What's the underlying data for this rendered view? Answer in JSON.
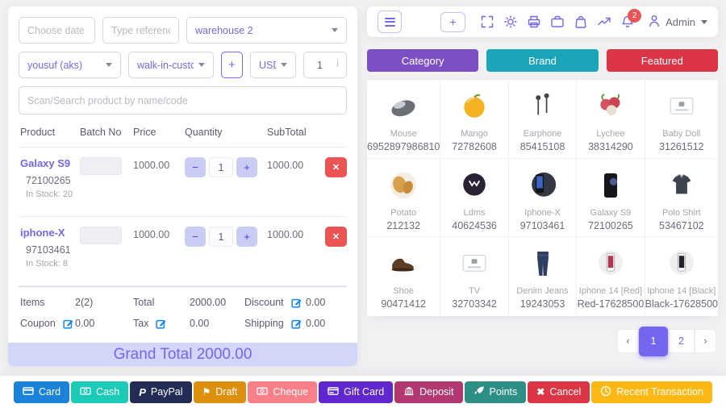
{
  "colors": {
    "accent_purple": "#7367f0",
    "danger_red": "#ea5455",
    "grand_total_bg": "#d2d6f8",
    "edit_icon_blue": "#0d86f8"
  },
  "glyphs": {
    "minus": "−",
    "plus": "+",
    "close_x": "✕",
    "cancel_x": "✖",
    "paypal_p": "P",
    "flag": "⚑"
  },
  "left_panel": {
    "date_placeholder": "Choose date",
    "reference_placeholder": "Type reference nu",
    "warehouse": "warehouse 2",
    "biller": "yousuf (aks)",
    "customer": "walk-in-customer",
    "add_customer_label": "+",
    "currency": "USD",
    "qty_value": "1",
    "qty_suffix": "i",
    "search_placeholder": "Scan/Search product by name/code",
    "table": {
      "headers": [
        "Product",
        "Batch No",
        "Price",
        "Quantity",
        "SubTotal"
      ],
      "rows": [
        {
          "name": "Galaxy S9",
          "code": "72100265",
          "stock": "In Stock: 20",
          "price": "1000.00",
          "qty": "1",
          "subtotal": "1000.00"
        },
        {
          "name": "iphone-X",
          "code": "97103461",
          "stock": "In Stock: 8",
          "price": "1000.00",
          "qty": "1",
          "subtotal": "1000.00"
        }
      ]
    },
    "summary": {
      "items_label": "Items",
      "items_value": "2(2)",
      "total_label": "Total",
      "total_value": "2000.00",
      "discount_label": "Discount",
      "discount_value": "0.00",
      "coupon_label": "Coupon",
      "coupon_value": "0.00",
      "tax_label": "Tax",
      "tax_value": "0.00",
      "shipping_label": "Shipping",
      "shipping_value": "0.00"
    },
    "grand_total": "Grand Total 2000.00"
  },
  "toolbar": {
    "icons": [
      "maximize",
      "settings",
      "printer",
      "briefcase",
      "shopping-bag",
      "trending-up"
    ],
    "notification_count": "2",
    "admin_label": "Admin"
  },
  "filter_buttons": [
    {
      "label": "Category",
      "color": "#7b50c5"
    },
    {
      "label": "Brand",
      "color": "#1aa5b8"
    },
    {
      "label": "Featured",
      "color": "#dc3545"
    }
  ],
  "products": [
    {
      "name": "Mouse",
      "code": "6952897986810",
      "img": "mouse"
    },
    {
      "name": "Mango",
      "code": "72782608",
      "img": "mango"
    },
    {
      "name": "Earphone",
      "code": "85415108",
      "img": "earphone"
    },
    {
      "name": "Lychee",
      "code": "38314290",
      "img": "lychee"
    },
    {
      "name": "Baby Doll",
      "code": "31261512",
      "img": "box"
    },
    {
      "name": "Potato",
      "code": "212132",
      "img": "potato"
    },
    {
      "name": "Ldms",
      "code": "40624536",
      "img": "lion"
    },
    {
      "name": "Iphone-X",
      "code": "97103461",
      "img": "phone-duo"
    },
    {
      "name": "Galaxy S9",
      "code": "72100265",
      "img": "phone-black"
    },
    {
      "name": "Polo Shirt",
      "code": "53467102",
      "img": "shirt"
    },
    {
      "name": "Shoe",
      "code": "90471412",
      "img": "shoe"
    },
    {
      "name": "TV",
      "code": "32703342",
      "img": "box"
    },
    {
      "name": "Denim Jeans",
      "code": "19243053",
      "img": "jeans"
    },
    {
      "name": "Iphone 14 [Red]",
      "code": "Red-17628500",
      "img": "phone-circle-red"
    },
    {
      "name": "Iphone 14 [Black]",
      "code": "Black-17628500",
      "img": "phone-circle-black"
    }
  ],
  "pagination": {
    "prev": "‹",
    "pages": [
      "1",
      "2"
    ],
    "active": "1",
    "next": "›"
  },
  "payment_buttons": [
    {
      "label": "Card",
      "color": "#1a82d8",
      "icon": "credit-card"
    },
    {
      "label": "Cash",
      "color": "#1ccab8",
      "icon": "cash"
    },
    {
      "label": "PayPal",
      "color": "#222c54",
      "icon": "paypal"
    },
    {
      "label": "Draft",
      "color": "#dd8f0e",
      "icon": "flag"
    },
    {
      "label": "Cheque",
      "color": "#f97f88",
      "icon": "cash"
    },
    {
      "label": "Gift Card",
      "color": "#5f27cd",
      "icon": "gift-card"
    },
    {
      "label": "Deposit",
      "color": "#b33771",
      "icon": "bank"
    },
    {
      "label": "Points",
      "color": "#2e8f85",
      "icon": "rocket"
    },
    {
      "label": "Cancel",
      "color": "#dc3545",
      "icon": "x"
    },
    {
      "label": "Recent Transaction",
      "color": "#fdb813",
      "icon": "clock"
    }
  ]
}
